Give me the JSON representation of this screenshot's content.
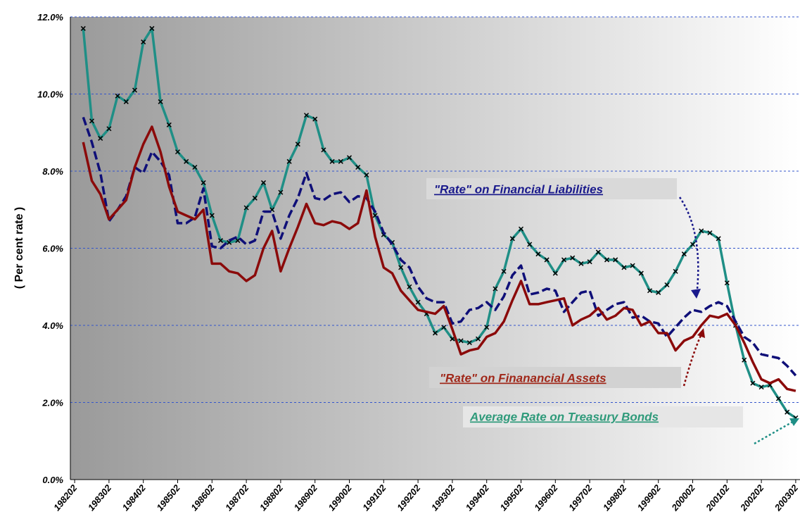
{
  "chart_data": {
    "type": "line",
    "ylabel": "( Per cent rate )",
    "ylim": [
      0,
      12
    ],
    "yticks": [
      {
        "value": 0,
        "label": "0.0%"
      },
      {
        "value": 2,
        "label": "2.0%"
      },
      {
        "value": 4,
        "label": "4.0%"
      },
      {
        "value": 6,
        "label": "6.0%"
      },
      {
        "value": 8,
        "label": "8.0%"
      },
      {
        "value": 10,
        "label": "10.0%"
      },
      {
        "value": 12,
        "label": "12.0%"
      }
    ],
    "grid": true,
    "categories": [
      "198202",
      null,
      null,
      null,
      "198302",
      null,
      null,
      null,
      "198402",
      null,
      null,
      null,
      "198502",
      null,
      null,
      null,
      "198602",
      null,
      null,
      null,
      "198702",
      null,
      null,
      null,
      "198802",
      null,
      null,
      null,
      "198902",
      null,
      null,
      null,
      "199002",
      null,
      null,
      null,
      "199102",
      null,
      null,
      null,
      "199202",
      null,
      null,
      null,
      "199302",
      null,
      null,
      null,
      "199402",
      null,
      null,
      null,
      "199502",
      null,
      null,
      null,
      "199602",
      null,
      null,
      null,
      "199702",
      null,
      null,
      null,
      "199802",
      null,
      null,
      null,
      "199902",
      null,
      null,
      null,
      "200002",
      null,
      null,
      null,
      "200102",
      null,
      null,
      null,
      "200202",
      null,
      null,
      null,
      "200302"
    ],
    "series": [
      {
        "name": "Average Rate on Treasury Bonds",
        "color": "#1f8f86",
        "dash": false,
        "marker": "x",
        "values": [
          null,
          11.7,
          9.3,
          8.85,
          9.1,
          9.95,
          9.8,
          10.1,
          11.35,
          11.7,
          9.8,
          9.2,
          8.5,
          8.25,
          8.1,
          7.7,
          6.85,
          6.2,
          6.15,
          6.2,
          7.05,
          7.3,
          7.7,
          7.0,
          7.45,
          8.25,
          8.7,
          9.45,
          9.35,
          8.55,
          8.25,
          8.25,
          8.35,
          8.1,
          7.9,
          6.85,
          6.35,
          6.15,
          5.5,
          5.0,
          4.6,
          4.3,
          3.8,
          3.95,
          3.65,
          3.6,
          3.55,
          3.65,
          3.95,
          4.95,
          5.4,
          6.25,
          6.5,
          6.1,
          5.85,
          5.7,
          5.35,
          5.7,
          5.75,
          5.6,
          5.65,
          5.9,
          5.7,
          5.7,
          5.5,
          5.55,
          5.35,
          4.9,
          4.85,
          5.05,
          5.4,
          5.85,
          6.1,
          6.45,
          6.4,
          6.25,
          5.1,
          4.0,
          3.1,
          2.5,
          2.4,
          2.45,
          2.1,
          1.75,
          1.6
        ]
      },
      {
        "name": "\"Rate\" on Financial Liabilities",
        "color": "#0f0f78",
        "dash": true,
        "values": [
          null,
          9.4,
          8.75,
          7.95,
          6.7,
          7.0,
          7.35,
          8.1,
          7.95,
          8.5,
          8.25,
          7.9,
          6.65,
          6.65,
          6.8,
          7.55,
          6.05,
          6.0,
          6.2,
          6.3,
          6.1,
          6.2,
          6.95,
          6.95,
          6.25,
          6.85,
          7.3,
          7.95,
          7.3,
          7.25,
          7.4,
          7.45,
          7.2,
          7.35,
          7.3,
          6.95,
          6.4,
          6.1,
          5.7,
          5.5,
          5.0,
          4.7,
          4.6,
          4.6,
          4.05,
          4.1,
          4.4,
          4.45,
          4.6,
          4.4,
          4.75,
          5.3,
          5.55,
          4.8,
          4.85,
          4.95,
          4.9,
          4.35,
          4.6,
          4.85,
          4.9,
          4.25,
          4.4,
          4.55,
          4.6,
          4.2,
          4.25,
          4.1,
          4.05,
          3.7,
          3.95,
          4.2,
          4.4,
          4.35,
          4.5,
          4.6,
          4.5,
          4.1,
          3.7,
          3.55,
          3.25,
          3.2,
          3.15,
          2.95,
          2.7
        ]
      },
      {
        "name": "\"Rate\" on Finanancial Assets",
        "color": "#8b0a0a",
        "dash": false,
        "values": [
          null,
          8.75,
          7.75,
          7.4,
          6.75,
          7.0,
          7.25,
          8.1,
          8.7,
          9.15,
          8.5,
          7.6,
          6.95,
          6.85,
          6.75,
          7.0,
          5.6,
          5.6,
          5.4,
          5.35,
          5.15,
          5.3,
          6.0,
          6.45,
          5.4,
          6.0,
          6.55,
          7.15,
          6.65,
          6.6,
          6.7,
          6.65,
          6.5,
          6.65,
          7.5,
          6.3,
          5.5,
          5.35,
          4.9,
          4.65,
          4.4,
          4.35,
          4.3,
          4.5,
          3.9,
          3.25,
          3.35,
          3.4,
          3.7,
          3.8,
          4.1,
          4.65,
          5.15,
          4.55,
          4.55,
          4.6,
          4.65,
          4.7,
          4.0,
          4.15,
          4.25,
          4.45,
          4.15,
          4.25,
          4.45,
          4.4,
          4.0,
          4.1,
          3.8,
          3.8,
          3.35,
          3.6,
          3.7,
          4.0,
          4.25,
          4.2,
          4.3,
          4.0,
          3.55,
          3.05,
          2.6,
          2.5,
          2.6,
          2.35,
          2.3
        ]
      }
    ]
  }
}
